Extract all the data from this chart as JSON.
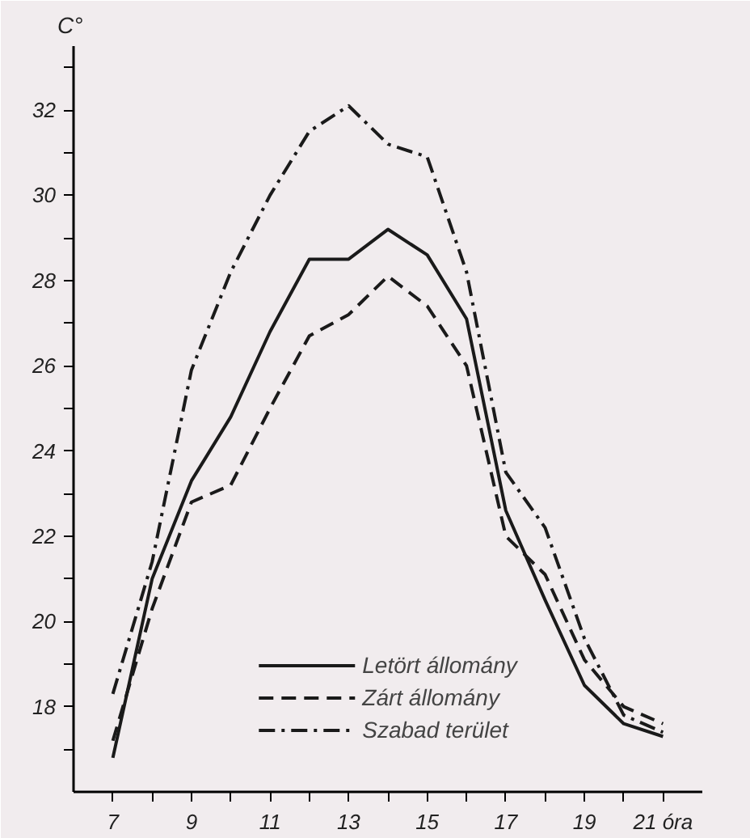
{
  "chart_data": {
    "type": "line",
    "ylabel": "C°",
    "x": [
      7,
      8,
      9,
      10,
      11,
      12,
      13,
      14,
      15,
      16,
      17,
      18,
      19,
      20,
      21
    ],
    "series": [
      {
        "name": "Letört állomány",
        "color": "#1a1a1a",
        "line_style": "solid",
        "values": [
          16.8,
          21.0,
          23.3,
          24.8,
          26.8,
          28.5,
          28.5,
          29.2,
          28.6,
          27.1,
          22.6,
          20.5,
          18.5,
          17.6,
          17.3
        ]
      },
      {
        "name": "Zárt állomány",
        "color": "#1a1a1a",
        "line_style": "dashed",
        "values": [
          17.2,
          20.3,
          22.8,
          23.2,
          25.0,
          26.7,
          27.2,
          28.1,
          27.4,
          26.0,
          22.0,
          21.1,
          19.1,
          18.0,
          17.6
        ]
      },
      {
        "name": "Szabad terület",
        "color": "#1a1a1a",
        "line_style": "dashdot",
        "values": [
          18.3,
          21.4,
          25.9,
          28.2,
          30.0,
          31.5,
          32.1,
          31.2,
          30.9,
          28.2,
          23.5,
          22.2,
          19.6,
          17.8,
          17.4
        ]
      }
    ],
    "xlim": [
      6,
      22
    ],
    "ylim": [
      16,
      33.5
    ],
    "xticks": [
      7,
      {
        "value": 8,
        "label": null
      },
      9,
      {
        "value": 10,
        "label": null
      },
      11,
      {
        "value": 12,
        "label": null
      },
      13,
      {
        "value": 14,
        "label": null
      },
      15,
      {
        "value": 16,
        "label": null
      },
      17,
      {
        "value": 18,
        "label": null
      },
      19,
      {
        "value": 20,
        "label": null
      },
      {
        "value": 21,
        "label": "21 óra"
      }
    ],
    "yticks": [
      {
        "value": 17,
        "label": null
      },
      18,
      {
        "value": 19,
        "label": null
      },
      20,
      {
        "value": 21,
        "label": null
      },
      22,
      {
        "value": 23,
        "label": null
      },
      24,
      {
        "value": 25,
        "label": null
      },
      26,
      {
        "value": 27,
        "label": null
      },
      28,
      {
        "value": 29,
        "label": null
      },
      30,
      {
        "value": 31,
        "label": null
      },
      32,
      {
        "value": 33,
        "label": null
      }
    ],
    "grid": false,
    "legend": "bottom",
    "marker": "none"
  }
}
